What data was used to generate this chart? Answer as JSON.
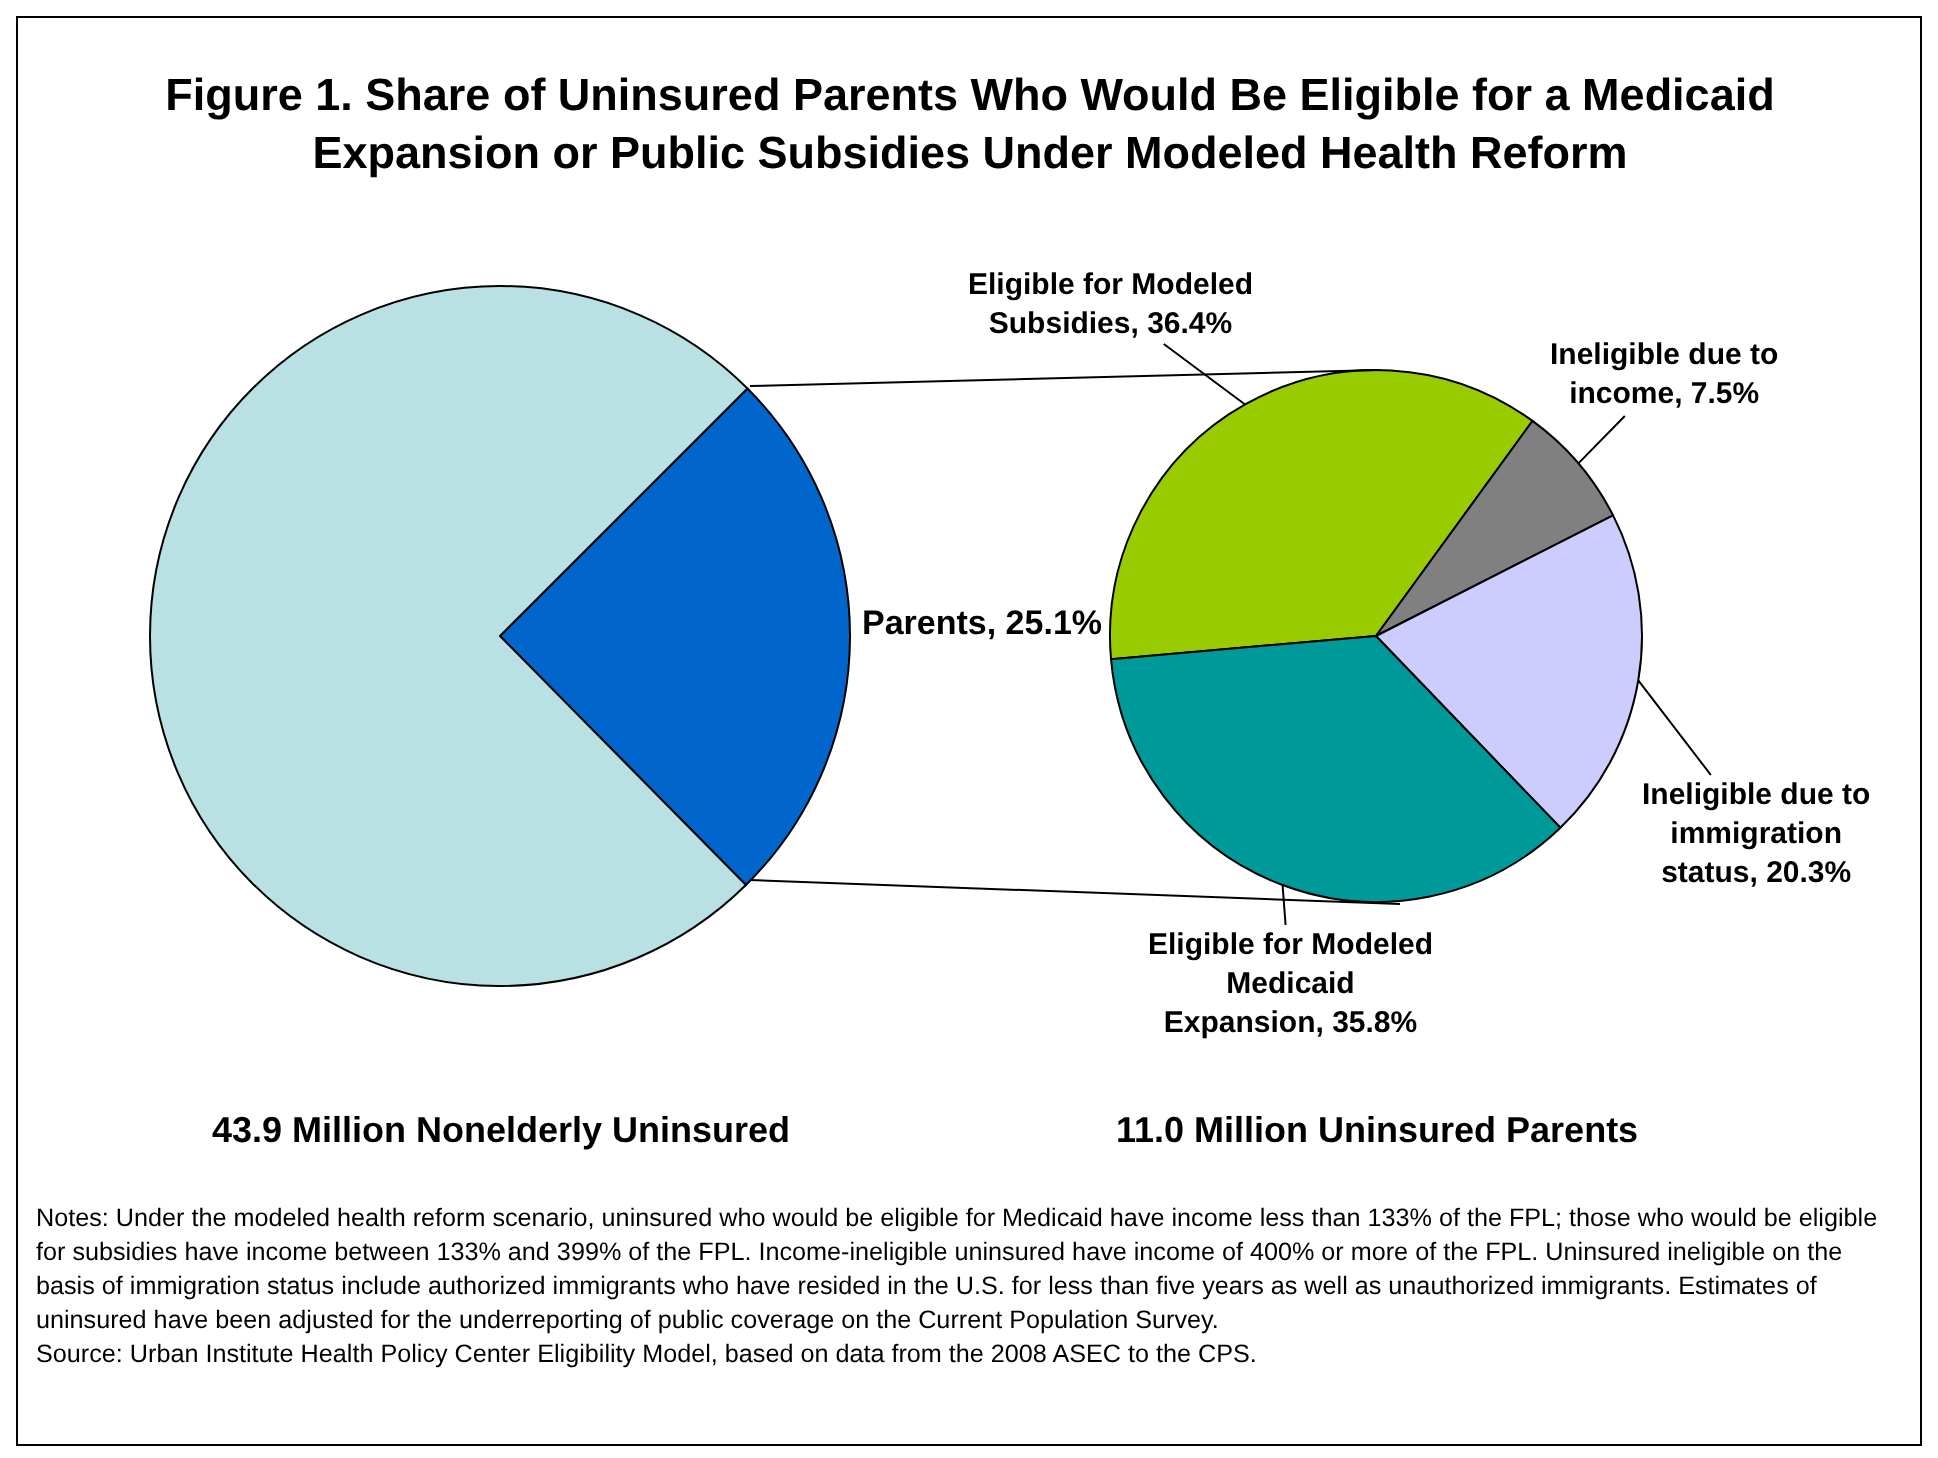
{
  "chart_data": [
    {
      "type": "pie",
      "title": "Figure 1. Share of Uninsured Parents Who Would Be Eligible for a Medicaid Expansion or Public Subsidies Under Modeled Health Reform",
      "xlabel": "43.9 Million Nonelderly Uninsured",
      "categories": [
        "Parents",
        null
      ],
      "values": [
        25.1,
        74.9
      ],
      "value_labels": [
        "25.1%",
        null
      ],
      "colors": [
        "#0066cc",
        "#b9e0e3"
      ],
      "legend": false
    },
    {
      "type": "pie",
      "xlabel": "11.0 Million Uninsured Parents",
      "categories": [
        "Eligible for Modeled Subsidies",
        "Ineligible due to income",
        "Ineligible due to immigration status",
        "Eligible for Modeled Medicaid Expansion"
      ],
      "values": [
        36.4,
        7.5,
        20.3,
        35.8
      ],
      "value_labels": [
        "36.4%",
        "7.5%",
        "20.3%",
        "35.8%"
      ],
      "colors": [
        "#99cc00",
        "#808080",
        "#ccccff",
        "#009999"
      ],
      "legend": false,
      "annotations": [
        "Notes: Under the modeled health reform scenario, uninsured who would be eligible for Medicaid have income less than 133% of the FPL; those  who would be eligible for subsidies have income between 133% and 399% of the FPL. Income-ineligible uninsured have income of 400% or more of the FPL. Uninsured ineligible on the basis of immigration status include authorized immigrants who have resided in the U.S. for less than five years as well as unauthorized immigrants. Estimates of uninsured have been adjusted for the underreporting of public coverage on the Current Population Survey.",
        "Source: Urban Institute Health Policy Center Eligibility Model, based on data from the 2008 ASEC to the CPS."
      ]
    }
  ]
}
